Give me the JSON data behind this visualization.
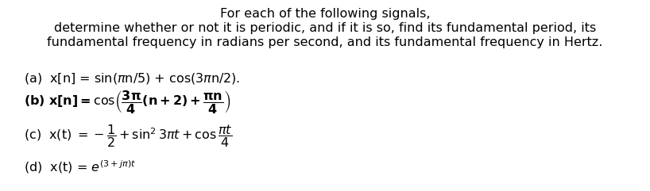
{
  "background_color": "#ffffff",
  "text_color": "#000000",
  "fig_width": 8.18,
  "fig_height": 2.41,
  "dpi": 100,
  "header1": "For each of the following signals,",
  "header2": "determine whether or not it is periodic, and if it is so, find its fundamental period, its",
  "header3": "fundamental frequency in radians per second, and its fundamental frequency in Hertz.",
  "fontsize_header": 11.5,
  "fontsize_body": 11.5
}
